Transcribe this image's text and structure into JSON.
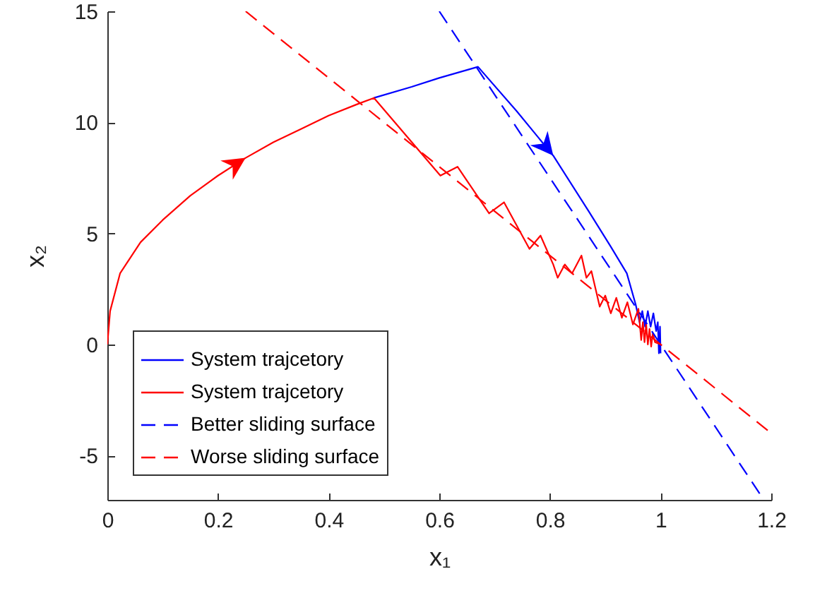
{
  "chart_data": {
    "type": "line",
    "xlabel": "x₁",
    "ylabel": "x₂",
    "xlim": [
      0,
      1.2
    ],
    "xticks": [
      0,
      0.2,
      0.4,
      0.6,
      0.8,
      1,
      1.2
    ],
    "ylim": [
      -7,
      15
    ],
    "yticks": [
      -5,
      0,
      5,
      10,
      15
    ],
    "legend": "bottom left",
    "grid": false,
    "series": [
      {
        "name": "System trajcetory",
        "color": "#0000ff",
        "line_style": "solid",
        "x": [
          0.482,
          0.55,
          0.6,
          0.67,
          0.74,
          0.806,
          0.87,
          0.91,
          0.939,
          0.955,
          0.962,
          0.967,
          0.972,
          0.977,
          0.982,
          0.987,
          0.992,
          0.995,
          0.997,
          0.999,
          1.0
        ],
        "values": [
          11.1,
          11.6,
          12.0,
          12.5,
          10.5,
          8.5,
          6.0,
          4.4,
          3.2,
          1.8,
          1.0,
          1.5,
          0.8,
          1.5,
          0.8,
          1.4,
          0.6,
          1.0,
          -0.4,
          0.8,
          -0.4
        ]
      },
      {
        "name": "System trajcetory",
        "color": "#ff0000",
        "line_style": "solid",
        "x": [
          0,
          0.005,
          0.023,
          0.06,
          0.1,
          0.15,
          0.2,
          0.25,
          0.3,
          0.35,
          0.4,
          0.45,
          0.482,
          0.602,
          0.633,
          0.69,
          0.717,
          0.763,
          0.783,
          0.806,
          0.814,
          0.827,
          0.84,
          0.857,
          0.866,
          0.875,
          0.89,
          0.9,
          0.91,
          0.92,
          0.93,
          0.94,
          0.95,
          0.96,
          0.965,
          0.968,
          0.971,
          0.974,
          0.977,
          0.98,
          0.983,
          0.986,
          0.99,
          1.0
        ],
        "values": [
          0,
          1.5,
          3.2,
          4.6,
          5.6,
          6.7,
          7.6,
          8.4,
          9.1,
          9.7,
          10.3,
          10.8,
          11.1,
          7.6,
          8.0,
          5.9,
          6.4,
          4.3,
          4.9,
          3.6,
          3.0,
          3.6,
          3.2,
          4.0,
          3.0,
          3.3,
          1.7,
          2.2,
          1.4,
          2.1,
          1.2,
          1.9,
          0.9,
          1.6,
          0.2,
          1.0,
          0.1,
          0.9,
          0.0,
          0.7,
          -0.1,
          0.5,
          0.1,
          0.0
        ]
      },
      {
        "name": "Better sliding surface",
        "color": "#0000ff",
        "line_style": "dashed",
        "x": [
          0.6,
          1.18
        ],
        "values": [
          15,
          -6.75
        ]
      },
      {
        "name": "Worse sliding surface",
        "color": "#ff0000",
        "line_style": "dashed",
        "x": [
          0.25,
          1.2
        ],
        "values": [
          15,
          -4
        ]
      }
    ]
  }
}
